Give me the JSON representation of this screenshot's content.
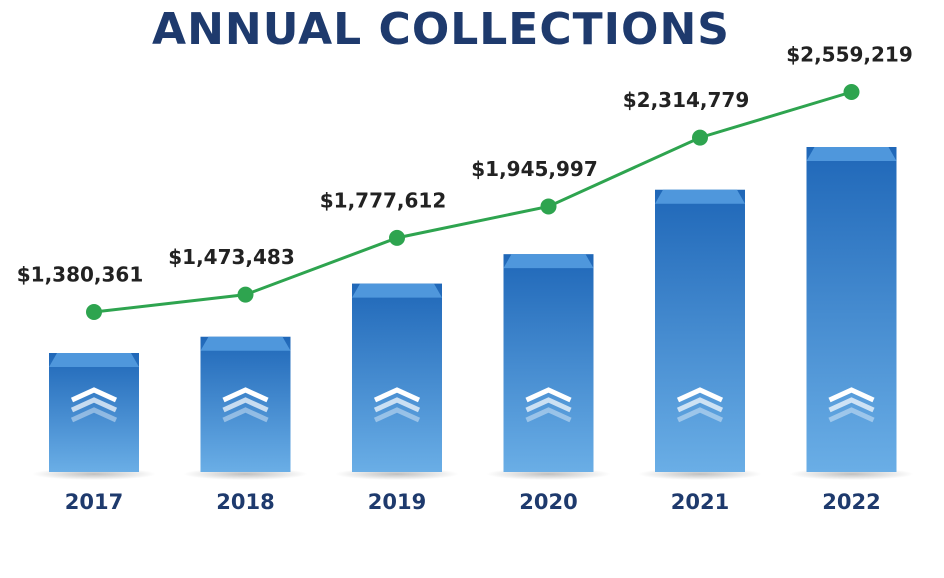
{
  "chart_data": {
    "type": "bar-line",
    "title": "ANNUAL COLLECTIONS",
    "categories": [
      "2017",
      "2018",
      "2019",
      "2020",
      "2021",
      "2022"
    ],
    "values": [
      1380361,
      1473483,
      1777612,
      1945997,
      2314779,
      2559219
    ],
    "value_labels": [
      "$1,380,361",
      "$1,473,483",
      "$1,777,612",
      "$1,945,997",
      "$2,314,779",
      "$2,559,219"
    ],
    "color": "#2f7bcb",
    "line_color": "#2ea44f"
  }
}
